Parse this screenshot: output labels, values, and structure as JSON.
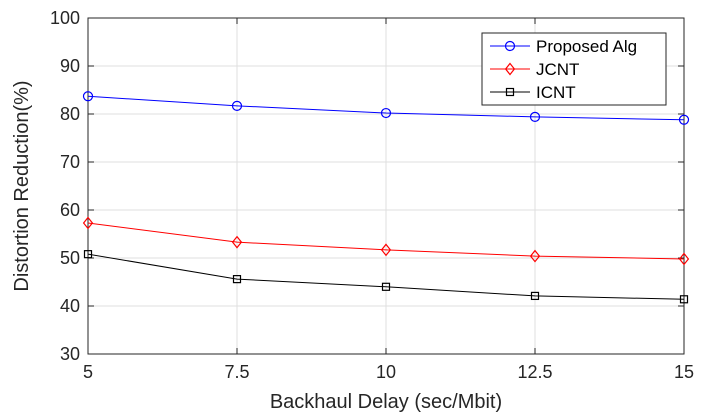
{
  "chart_data": {
    "type": "line",
    "xlabel": "Backhaul Delay (sec/Mbit)",
    "ylabel": "Distortion Reduction(%)",
    "xlim": [
      5,
      15
    ],
    "ylim": [
      30,
      100
    ],
    "x": [
      5,
      7.5,
      10,
      12.5,
      15
    ],
    "xticks": [
      "5",
      "7.5",
      "10",
      "12.5",
      "15"
    ],
    "yticks": [
      "30",
      "40",
      "50",
      "60",
      "70",
      "80",
      "90",
      "100"
    ],
    "grid": true,
    "legend_position": "top-right",
    "series": [
      {
        "name": "Proposed Alg",
        "values": [
          83.7,
          81.7,
          80.2,
          79.4,
          78.8
        ],
        "color": "#0000ff",
        "marker": "circle"
      },
      {
        "name": "JCNT",
        "values": [
          57.3,
          53.3,
          51.7,
          50.4,
          49.8
        ],
        "color": "#ff0000",
        "marker": "diamond"
      },
      {
        "name": "ICNT",
        "values": [
          50.8,
          45.6,
          44.0,
          42.1,
          41.4
        ],
        "color": "#000000",
        "marker": "square"
      }
    ]
  }
}
